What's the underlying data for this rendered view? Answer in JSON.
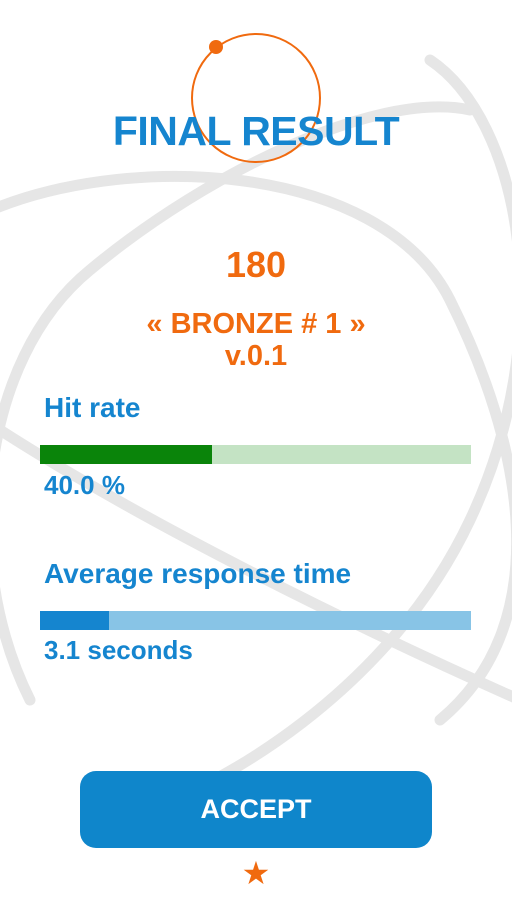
{
  "header": {
    "title": "FINAL RESULT"
  },
  "result": {
    "score": "180",
    "rank": "« BRONZE # 1 »",
    "version": "v.0.1"
  },
  "stats": {
    "hit_rate": {
      "label": "Hit rate",
      "value": "40.0 %",
      "fraction": 0.4
    },
    "response_time": {
      "label": "Average response time",
      "value": "3.1 seconds",
      "fraction": 0.16
    }
  },
  "actions": {
    "accept_label": "ACCEPT"
  },
  "icons": {
    "title_ring": "orbit-ring-icon",
    "footer": "star-icon",
    "background": "orbit-lines"
  },
  "colors": {
    "primary_blue": "#1585cf",
    "accent_orange": "#f06a0f",
    "hit_fill": "#0a840a",
    "hit_track": "#c4e3c4",
    "response_fill": "#1585cf",
    "response_track": "#88c4e6",
    "background": "#ffffff"
  }
}
